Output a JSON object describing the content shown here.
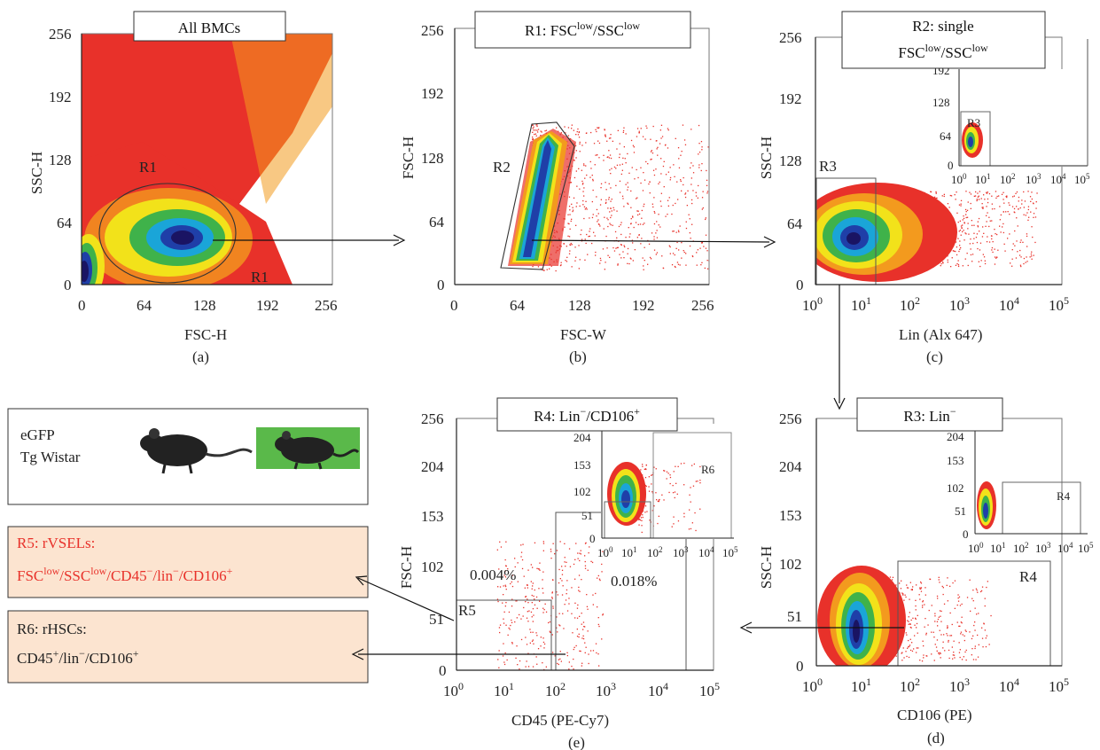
{
  "colors": {
    "dot_red": "#e8312a",
    "orange": "#f39a1e",
    "yellow": "#f2e21a",
    "green": "#3fb24a",
    "cyan": "#1aa5d8",
    "blue": "#1f3fa8",
    "navy": "#1a1463",
    "box_fill": "#fce4d0",
    "mouse_green": "#5ab94a",
    "text_red": "#e8312a"
  },
  "panels": [
    {
      "id": "a",
      "title": "All BMCs",
      "xlabel": "FSC-H",
      "ylabel": "SSC-H",
      "letter": "(a)",
      "xticks": [
        "0",
        "64",
        "128",
        "192",
        "256"
      ],
      "yticks": [
        "0",
        "64",
        "128",
        "192",
        "256"
      ],
      "gates": [
        "R1",
        "R1"
      ]
    },
    {
      "id": "b",
      "title": "R1: FSC",
      "title_sup1": "low",
      "title_mid": "/SSC",
      "title_sup2": "low",
      "xlabel": "FSC-W",
      "ylabel": "FSC-H",
      "letter": "(b)",
      "xticks": [
        "0",
        "64",
        "128",
        "192",
        "256"
      ],
      "yticks": [
        "0",
        "64",
        "128",
        "192",
        "256"
      ],
      "gates": [
        "R2"
      ]
    },
    {
      "id": "c",
      "title_line1": "R2: single",
      "title_line2": "FSC",
      "title_sup1": "low",
      "title_mid": "/SSC",
      "title_sup2": "low",
      "xlabel": "Lin (Alx 647)",
      "ylabel": "SSC-H",
      "letter": "(c)",
      "xticks": [
        "10",
        "10",
        "10",
        "10",
        "10",
        "10"
      ],
      "xexp": [
        "0",
        "1",
        "2",
        "3",
        "4",
        "5"
      ],
      "yticks": [
        "0",
        "64",
        "128",
        "192",
        "256"
      ],
      "gates": [
        "R3",
        "R3"
      ],
      "inset": {
        "yticks": [
          "0",
          "64",
          "128",
          "192"
        ],
        "xticks": [
          "10",
          "10",
          "10",
          "10",
          "10",
          "10"
        ],
        "xexp": [
          "0",
          "1",
          "2",
          "3",
          "4",
          "5"
        ]
      }
    },
    {
      "id": "d",
      "title": "R3: Lin",
      "title_sup": "−",
      "xlabel": "CD106 (PE)",
      "ylabel": "SSC-H",
      "letter": "(d)",
      "xticks": [
        "10",
        "10",
        "10",
        "10",
        "10",
        "10"
      ],
      "xexp": [
        "0",
        "1",
        "2",
        "3",
        "4",
        "5"
      ],
      "yticks": [
        "0",
        "51",
        "102",
        "153",
        "204",
        "256"
      ],
      "gates": [
        "R4",
        "R4"
      ],
      "inset": {
        "yticks": [
          "0",
          "51",
          "102",
          "153",
          "204"
        ],
        "xticks": [
          "10",
          "10",
          "10",
          "10",
          "10",
          "10"
        ],
        "xexp": [
          "0",
          "1",
          "2",
          "3",
          "4",
          "5"
        ]
      }
    },
    {
      "id": "e",
      "title": "R4: Lin",
      "title_sup1": "−",
      "title_mid": "/CD106",
      "title_sup2": "+",
      "xlabel": "CD45 (PE-Cy7)",
      "ylabel": "FSC-H",
      "letter": "(e)",
      "xticks": [
        "10",
        "10",
        "10",
        "10",
        "10",
        "10"
      ],
      "xexp": [
        "0",
        "1",
        "2",
        "3",
        "4",
        "5"
      ],
      "yticks": [
        "0",
        "51",
        "102",
        "153",
        "204",
        "256"
      ],
      "gates": [
        "R5",
        "R6"
      ],
      "pct_left": "0.004%",
      "pct_right": "0.018%",
      "inset": {
        "yticks": [
          "0",
          "51",
          "102",
          "153",
          "204"
        ],
        "xticks": [
          "10",
          "10",
          "10",
          "10",
          "10",
          "10"
        ],
        "xexp": [
          "0",
          "1",
          "2",
          "3",
          "4",
          "5"
        ]
      }
    }
  ],
  "legend": {
    "line1": "eGFP",
    "line2": "Tg Wistar"
  },
  "r5_box": {
    "line1": "R5: rVSELs:",
    "p1": "FSC",
    "s1": "low",
    "p2": "/SSC",
    "s2": "low",
    "p3": "/CD45",
    "s3": "−",
    "p4": "/lin",
    "s4": "−",
    "p5": "/CD106",
    "s5": "+"
  },
  "r6_box": {
    "line1": "R6: rHSCs:",
    "p1": "CD45",
    "s1": "+",
    "p2": "/lin",
    "s2": "−",
    "p3": "/CD106",
    "s3": "+"
  },
  "chart_data": [
    {
      "type": "scatter",
      "panel": "a",
      "xlabel": "FSC-H",
      "ylabel": "SSC-H",
      "xlim": [
        0,
        256
      ],
      "ylim": [
        0,
        256
      ],
      "populations": [
        {
          "center": [
            100,
            48
          ],
          "spread": "main"
        },
        {
          "center": [
            8,
            25
          ],
          "spread": "small"
        }
      ],
      "gates": [
        {
          "name": "R1",
          "shape": "ellipse",
          "center": [
            82,
            55
          ],
          "rx": 68,
          "ry": 48
        }
      ]
    },
    {
      "type": "scatter",
      "panel": "b",
      "xlabel": "FSC-W",
      "ylabel": "FSC-H",
      "xlim": [
        0,
        256
      ],
      "ylim": [
        0,
        256
      ],
      "gates": [
        {
          "name": "R2",
          "shape": "polygon"
        }
      ]
    },
    {
      "type": "scatter",
      "panel": "c",
      "xlabel": "Lin (Alx 647)",
      "ylabel": "SSC-H",
      "xscale": "log",
      "xlim": [
        1,
        100000
      ],
      "ylim": [
        0,
        256
      ],
      "gates": [
        {
          "name": "R3",
          "x": [
            1,
            15
          ],
          "y": [
            0,
            108
          ]
        }
      ]
    },
    {
      "type": "scatter",
      "panel": "d",
      "xlabel": "CD106 (PE)",
      "ylabel": "SSC-H",
      "xscale": "log",
      "xlim": [
        1,
        100000
      ],
      "ylim": [
        0,
        256
      ],
      "gates": [
        {
          "name": "R4",
          "x": [
            60,
            55000
          ],
          "y": [
            0,
            105
          ]
        }
      ]
    },
    {
      "type": "scatter",
      "panel": "e",
      "xlabel": "CD45 (PE-Cy7)",
      "ylabel": "FSC-H",
      "xscale": "log",
      "xlim": [
        1,
        100000
      ],
      "ylim": [
        0,
        256
      ],
      "gates": [
        {
          "name": "R5",
          "x": [
            1,
            60
          ],
          "y": [
            0,
            72
          ],
          "percent": "0.004%"
        },
        {
          "name": "R6",
          "x": [
            80,
            35000
          ],
          "y": [
            0,
            153
          ],
          "percent": "0.018%"
        }
      ]
    }
  ]
}
